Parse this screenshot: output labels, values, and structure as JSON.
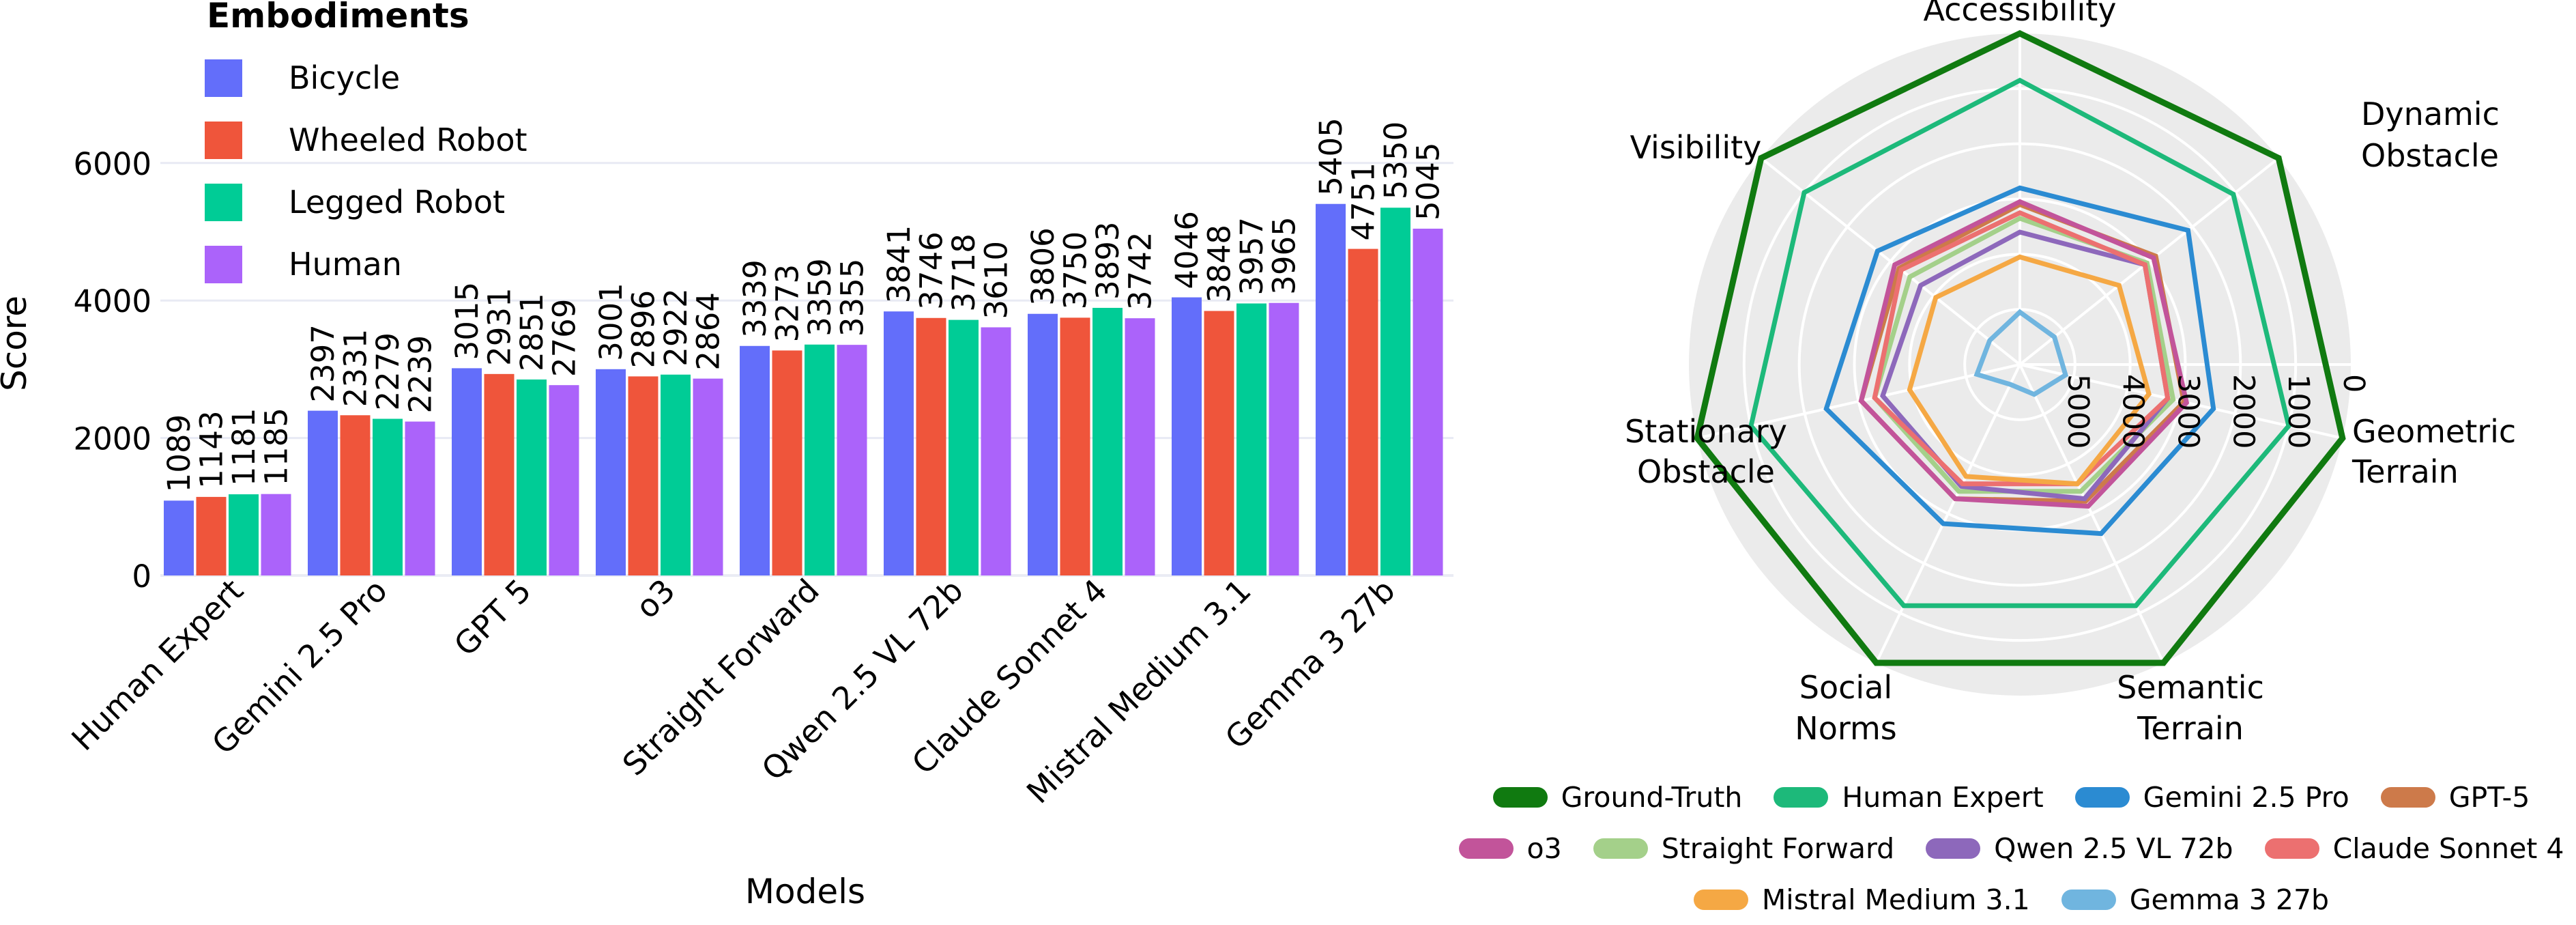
{
  "chart_data": [
    {
      "type": "bar",
      "title": "",
      "xlabel": "Models",
      "ylabel": "Score",
      "ylim": [
        0,
        7200
      ],
      "yticks": [
        0,
        2000,
        4000,
        6000
      ],
      "grid": true,
      "legend_title": "Embodiments",
      "legend_position": "top-left",
      "categories": [
        "Human Expert",
        "Gemini 2.5 Pro",
        "GPT 5",
        "o3",
        "Straight Forward",
        "Qwen 2.5 VL 72b",
        "Claude Sonnet 4",
        "Mistral Medium 3.1",
        "Gemma 3 27b"
      ],
      "series": [
        {
          "name": "Bicycle",
          "color": "#636efa",
          "values": [
            1089,
            2397,
            3015,
            3001,
            3339,
            3841,
            3806,
            4046,
            5405
          ]
        },
        {
          "name": "Wheeled Robot",
          "color": "#ef553b",
          "values": [
            1143,
            2331,
            2931,
            2896,
            3273,
            3746,
            3750,
            3848,
            4751
          ]
        },
        {
          "name": "Legged Robot",
          "color": "#00cc96",
          "values": [
            1181,
            2279,
            2851,
            2922,
            3359,
            3718,
            3893,
            3957,
            5350
          ]
        },
        {
          "name": "Human",
          "color": "#ab63fa",
          "values": [
            1185,
            2239,
            2769,
            2864,
            3355,
            3610,
            3742,
            3965,
            5045
          ]
        }
      ]
    },
    {
      "type": "radar",
      "axes": [
        "Accessibility",
        "Dynamic Obstacle",
        "Geometric Terrain",
        "Semantic Terrain",
        "Social Norms",
        "Stationary Obstacle",
        "Visibility"
      ],
      "radial_range": [
        6000,
        0
      ],
      "radial_ticks": [
        5000,
        4000,
        3000,
        2000,
        1000,
        0
      ],
      "legend_position": "bottom",
      "series": [
        {
          "name": "Ground-Truth",
          "color": "#107a10",
          "values": [
            0,
            0,
            0,
            0,
            0,
            0,
            0
          ]
        },
        {
          "name": "Human Expert",
          "color": "#1db97a",
          "values": [
            850,
            1050,
            1000,
            1150,
            1150,
            1000,
            1000
          ]
        },
        {
          "name": "Gemini 2.5 Pro",
          "color": "#2b8bd2",
          "values": [
            2800,
            2100,
            2400,
            2600,
            2800,
            2400,
            2700
          ]
        },
        {
          "name": "GPT-5",
          "color": "#cd7a4a",
          "values": [
            3100,
            2850,
            2950,
            3250,
            3300,
            3050,
            3200
          ]
        },
        {
          "name": "o3",
          "color": "#c2549a",
          "values": [
            3050,
            2900,
            2900,
            3150,
            3300,
            3050,
            3100
          ]
        },
        {
          "name": "Straight Forward",
          "color": "#a4d08a",
          "values": [
            3350,
            3050,
            3150,
            3450,
            3450,
            3300,
            3450
          ]
        },
        {
          "name": "Qwen 2.5 VL 72b",
          "color": "#8d68bb",
          "values": [
            3600,
            3100,
            3250,
            3300,
            3550,
            3450,
            3700
          ]
        },
        {
          "name": "Claude Sonnet 4",
          "color": "#ec7070",
          "values": [
            3250,
            3100,
            3250,
            3600,
            3600,
            3300,
            3250
          ]
        },
        {
          "name": "Mistral Medium 3.1",
          "color": "#f5a844",
          "values": [
            4050,
            3700,
            3600,
            3600,
            3750,
            3950,
            4050
          ]
        },
        {
          "name": "Gemma 3 27b",
          "color": "#70b5df",
          "values": [
            5050,
            5200,
            5150,
            5400,
            5600,
            5200,
            5300
          ]
        }
      ]
    }
  ]
}
